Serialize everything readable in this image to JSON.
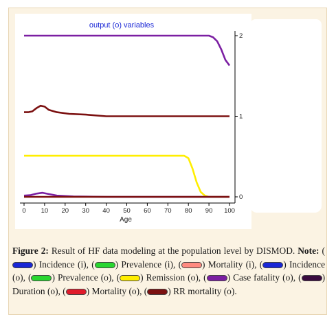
{
  "chart_data": {
    "type": "line",
    "title": "output (o) variables",
    "xlabel": "Age",
    "xlim": [
      0,
      100
    ],
    "ylim": [
      0,
      2
    ],
    "x_ticks": [
      0,
      10,
      20,
      30,
      40,
      50,
      60,
      70,
      80,
      90,
      100
    ],
    "y_ticks": [
      0,
      1,
      2
    ],
    "grid": false,
    "series": [
      {
        "color": "#7b1fa2",
        "points": [
          [
            0,
            2
          ],
          [
            80,
            2
          ],
          [
            90,
            2
          ],
          [
            92,
            1.98
          ],
          [
            94,
            1.93
          ],
          [
            96,
            1.83
          ],
          [
            98,
            1.7
          ],
          [
            100,
            1.63
          ]
        ]
      },
      {
        "color": "#7b1010",
        "points": [
          [
            0,
            1.05
          ],
          [
            2,
            1.05
          ],
          [
            4,
            1.06
          ],
          [
            6,
            1.1
          ],
          [
            8,
            1.13
          ],
          [
            10,
            1.12
          ],
          [
            12,
            1.08
          ],
          [
            16,
            1.05
          ],
          [
            22,
            1.03
          ],
          [
            30,
            1.02
          ],
          [
            40,
            1.0
          ],
          [
            100,
            1.0
          ]
        ]
      },
      {
        "color": "#ffee00",
        "points": [
          [
            0,
            0.51
          ],
          [
            78,
            0.51
          ],
          [
            80,
            0.48
          ],
          [
            82,
            0.35
          ],
          [
            84,
            0.18
          ],
          [
            86,
            0.06
          ],
          [
            88,
            0.015
          ],
          [
            90,
            0.0
          ],
          [
            100,
            0.0
          ]
        ]
      },
      {
        "color": "#7b1fa2",
        "points": [
          [
            0,
            0.015
          ],
          [
            3,
            0.02
          ],
          [
            6,
            0.04
          ],
          [
            9,
            0.05
          ],
          [
            12,
            0.035
          ],
          [
            16,
            0.015
          ],
          [
            24,
            0.005
          ],
          [
            40,
            0.0
          ],
          [
            100,
            0.0
          ]
        ]
      },
      {
        "color": "#7b1010",
        "points": [
          [
            0,
            0.0
          ],
          [
            100,
            0.0
          ]
        ]
      }
    ]
  },
  "caption": {
    "figure_label": "Figure 2:",
    "text_1": "Result of HF data modeling at the population level by DISMOD.",
    "note_label": "Note:",
    "items": [
      {
        "color": "#1a27d6",
        "label": "Incidence (i),"
      },
      {
        "color": "#29d630",
        "label": "Prevalence (i),"
      },
      {
        "color": "#ff8a80",
        "label": "Mortality (i),"
      },
      {
        "color": "#1a27d6",
        "label": "Incidence (o),"
      },
      {
        "color": "#29d630",
        "label": "Prevalence (o),"
      },
      {
        "color": "#ffee00",
        "label": "Remission (o),"
      },
      {
        "color": "#7b1fa2",
        "label": "Case fatality (o),"
      },
      {
        "color": "#3a0b3f",
        "label": "Duration (o),"
      },
      {
        "color": "#e01b2b",
        "label": "Mortality (o),"
      },
      {
        "color": "#7b1010",
        "label": "RR mortality (o)."
      }
    ]
  }
}
